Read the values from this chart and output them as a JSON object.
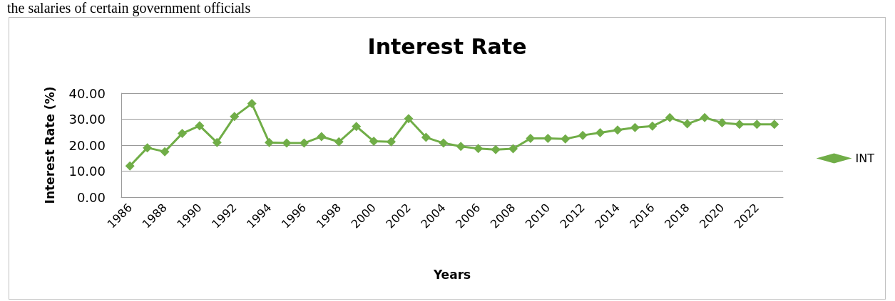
{
  "chart_data": {
    "type": "line",
    "title": "Interest Rate",
    "xlabel": "Years",
    "ylabel": "Interest Rate (%)",
    "annotations": [
      "the salaries of certain government officials"
    ],
    "categories": [
      "1986",
      null,
      "1988",
      null,
      "1990",
      null,
      "1992",
      null,
      "1994",
      null,
      "1996",
      null,
      "1998",
      null,
      "2000",
      null,
      "2002",
      null,
      "2004",
      null,
      "2006",
      null,
      "2008",
      null,
      "2010",
      null,
      "2012",
      null,
      "2014",
      null,
      "2016",
      null,
      "2018",
      null,
      "2020",
      null,
      "2022",
      null
    ],
    "series": [
      {
        "name": "INT",
        "color": "#70ad47",
        "values": [
          12,
          19,
          17.5,
          24.5,
          27.5,
          21,
          31,
          36,
          21,
          20.8,
          20.8,
          23.3,
          21.3,
          27.2,
          21.5,
          21.3,
          30.2,
          23,
          20.8,
          19.5,
          18.7,
          18.3,
          18.6,
          22.6,
          22.6,
          22.4,
          23.8,
          24.8,
          25.8,
          26.8,
          27.3,
          30.6,
          28.2,
          30.6,
          28.6,
          28,
          28,
          28
        ]
      }
    ],
    "ylim": [
      0,
      40
    ],
    "yticks": [
      {
        "value": 0,
        "label": "0.00"
      },
      {
        "value": 10,
        "label": "10.00"
      },
      {
        "value": 20,
        "label": "20.00"
      },
      {
        "value": 30,
        "label": "30.00"
      },
      {
        "value": 40,
        "label": "40.00"
      }
    ],
    "grid": "y",
    "legend": "right",
    "marker": "diamond",
    "line_style": "solid"
  }
}
